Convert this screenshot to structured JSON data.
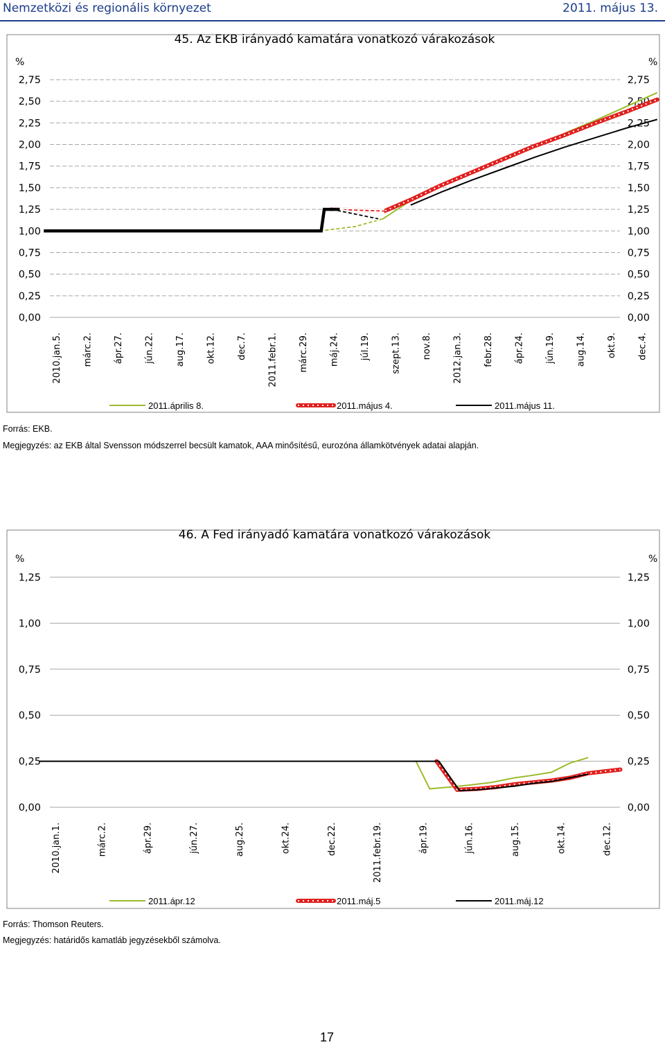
{
  "header": {
    "section_title": "Nemzetközi és regionális környezet",
    "date": "2011. május 13."
  },
  "chart_data": [
    {
      "type": "line",
      "title": "45. Az EKB irányadó kamatára vonatkozó várakozások",
      "unit_left": "%",
      "unit_right": "%",
      "ylim": [
        0,
        2.75
      ],
      "yticks": [
        "0,00",
        "0,25",
        "0,50",
        "0,75",
        "1,00",
        "1,25",
        "1,50",
        "1,75",
        "2,00",
        "2,25",
        "2,50",
        "2,75"
      ],
      "categories": [
        "2010.jan.5.",
        "márc.2.",
        "ápr.27.",
        "jún.22.",
        "aug.17.",
        "okt.12.",
        "dec.7.",
        "2011.febr.1.",
        "márc.29.",
        "máj.24.",
        "júl.19.",
        "szept.13.",
        "nov.8.",
        "2012.jan.3.",
        "febr.28.",
        "ápr.24.",
        "jún.19.",
        "aug.14.",
        "okt.9.",
        "dec.4."
      ],
      "grid": true,
      "legend_position": "bottom",
      "series": [
        {
          "name": "2011.április 8.",
          "color": "#9bbb2a",
          "style": "solid",
          "x": [
            8.55,
            9.7,
            10.6,
            11.5,
            12.5,
            13.5,
            14.5,
            15.5,
            16.5,
            17.5,
            18.5,
            19.5
          ],
          "y": [
            1.0,
            1.05,
            1.14,
            1.35,
            1.52,
            1.68,
            1.83,
            1.98,
            2.13,
            2.28,
            2.44,
            2.6
          ],
          "dashed_until": 10.6
        },
        {
          "name": "2011.május 4.",
          "color": "#e0201e",
          "style": "dotted-red",
          "x": [
            8.95,
            10.65,
            11.5,
            12.5,
            13.5,
            14.5,
            15.5,
            16.5,
            17.5,
            18.5,
            19.5
          ],
          "y": [
            1.25,
            1.23,
            1.36,
            1.53,
            1.68,
            1.83,
            1.98,
            2.11,
            2.25,
            2.38,
            2.52
          ],
          "dashed_until": 10.65
        },
        {
          "name": "2011.május 11.",
          "color": "#000000",
          "style": "solid",
          "x": [
            8.95,
            10.45,
            10.65,
            11.5,
            12.5,
            13.5,
            14.5,
            15.5,
            16.5,
            17.5,
            18.5,
            19.5
          ],
          "y": [
            1.25,
            1.14,
            null,
            1.3,
            1.45,
            1.59,
            1.72,
            1.85,
            1.97,
            2.08,
            2.19,
            2.29
          ],
          "dashed_until": 10.45
        },
        {
          "name": "",
          "color": "#000000",
          "style": "thick",
          "x": [
            -0.4,
            8.55,
            8.6,
            8.7,
            9.2
          ],
          "y": [
            1.0,
            1.0,
            1.0,
            1.25,
            1.25
          ]
        }
      ]
    },
    {
      "type": "line",
      "title": "46. A Fed irányadó kamatára vonatkozó várakozások",
      "unit_left": "%",
      "unit_right": "%",
      "ylim": [
        0,
        1.25
      ],
      "yticks": [
        "0,00",
        "0,25",
        "0,50",
        "0,75",
        "1,00",
        "1,25"
      ],
      "categories": [
        "2010.jan.1.",
        "márc.2.",
        "ápr.29.",
        "jún.27.",
        "aug.25.",
        "okt.24.",
        "dec.22.",
        "2011.febr.19.",
        "ápr.19.",
        "jún.16.",
        "aug.15.",
        "okt.14.",
        "dec.12."
      ],
      "grid": true,
      "legend_position": "bottom",
      "series": [
        {
          "name": "2011.ápr.12",
          "color": "#9bbb2a",
          "style": "solid",
          "x": [
            7.85,
            8.15,
            8.6,
            9.0,
            9.5,
            10.0,
            10.3,
            10.8,
            11.2,
            11.6,
            12.0
          ],
          "y": [
            0.25,
            0.1,
            0.11,
            0.12,
            0.135,
            0.16,
            0.17,
            0.19,
            0.24,
            0.27,
            null
          ]
        },
        {
          "name": "2011.máj.5",
          "color": "#e0201e",
          "style": "dotted-red",
          "x": [
            8.3,
            8.75,
            9.2,
            9.6,
            10.0,
            10.4,
            10.8,
            11.2,
            11.6,
            12.3
          ],
          "y": [
            0.25,
            0.095,
            0.1,
            0.11,
            0.125,
            0.135,
            0.145,
            0.16,
            0.185,
            0.205
          ]
        },
        {
          "name": "2011.máj.12",
          "color": "#000000",
          "style": "solid",
          "x": [
            -0.35,
            8.35,
            8.8,
            9.2,
            9.6,
            10.0,
            10.4,
            10.8,
            11.2,
            11.6
          ],
          "y": [
            0.25,
            0.25,
            0.09,
            0.095,
            0.105,
            0.115,
            0.13,
            0.14,
            0.16,
            0.18
          ]
        }
      ]
    }
  ],
  "notes": {
    "chart1_source": "Forrás: EKB.",
    "chart1_note": "Megjegyzés: az EKB által Svensson módszerrel becsült kamatok, AAA minősítésű, eurozóna államkötvények adatai alapján.",
    "chart2_source": "Forrás: Thomson Reuters.",
    "chart2_note": "Megjegyzés: határidős kamatláb jegyzésekből számolva."
  },
  "page_number": "17"
}
